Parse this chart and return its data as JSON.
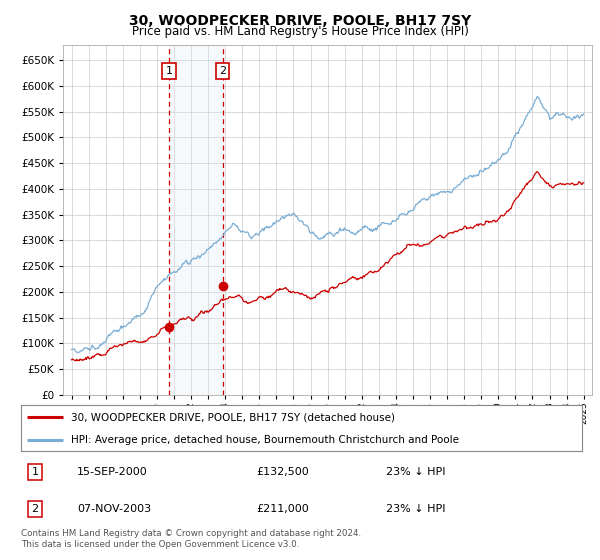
{
  "title": "30, WOODPECKER DRIVE, POOLE, BH17 7SY",
  "subtitle": "Price paid vs. HM Land Registry's House Price Index (HPI)",
  "sale1_date": 2000.71,
  "sale1_price": 132500,
  "sale2_date": 2003.85,
  "sale2_price": 211000,
  "sale1_label": "1",
  "sale2_label": "2",
  "hpi_line_color": "#7aadd4",
  "property_line_color": "#cc0000",
  "marker_color": "#cc0000",
  "shade_color": "#d8eaf7",
  "vline_color": "#cc0000",
  "grid_color": "#cccccc",
  "bg_color": "#ffffff",
  "legend_line1": "30, WOODPECKER DRIVE, POOLE, BH17 7SY (detached house)",
  "legend_line2": "HPI: Average price, detached house, Bournemouth Christchurch and Poole",
  "table_row1": [
    "1",
    "15-SEP-2000",
    "£132,500",
    "23% ↓ HPI"
  ],
  "table_row2": [
    "2",
    "07-NOV-2003",
    "£211,000",
    "23% ↓ HPI"
  ],
  "footnote": "Contains HM Land Registry data © Crown copyright and database right 2024.\nThis data is licensed under the Open Government Licence v3.0.",
  "ylim": [
    0,
    680000
  ],
  "xlim_start": 1994.5,
  "xlim_end": 2025.5,
  "yticks": [
    0,
    50000,
    100000,
    150000,
    200000,
    250000,
    300000,
    350000,
    400000,
    450000,
    500000,
    550000,
    600000,
    650000
  ]
}
